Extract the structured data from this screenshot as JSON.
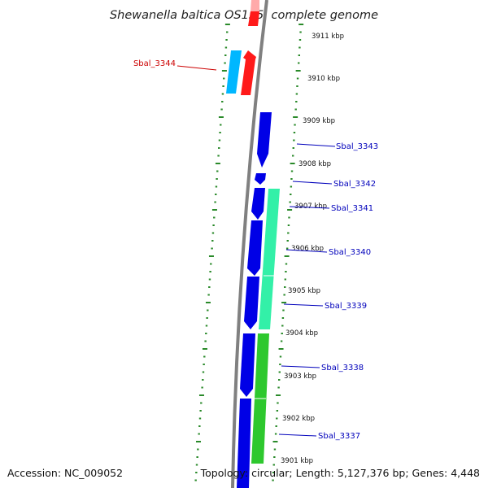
{
  "title": "Shewanella baltica OS155, complete genome",
  "accession_text": "Accession: NC_009052",
  "summary_text": "Topology: circular; Length: 5,127,376 bp; Genes: 4,448",
  "colors": {
    "backbone": "#808080",
    "ticks": "#2a8a2a",
    "forward_gene": "#ff1a1a",
    "forward_gene_light": "#00b7ff",
    "reverse_gene": "#0000e6",
    "feature_light": "#33f0a8",
    "feature_green": "#2ec82e",
    "label_forward": "#cc0000",
    "label_reverse": "#0000bb"
  },
  "kbp_labels": [
    "3911 kbp",
    "3910 kbp",
    "3909 kbp",
    "3908 kbp",
    "3907 kbp",
    "3906 kbp",
    "3905 kbp",
    "3904 kbp",
    "3903 kbp",
    "3902 kbp",
    "3901 kbp"
  ],
  "genes": [
    {
      "label": "Sbal_3344",
      "strand": "forward"
    },
    {
      "label": "Sbal_3343",
      "strand": "reverse"
    },
    {
      "label": "Sbal_3342",
      "strand": "reverse"
    },
    {
      "label": "Sbal_3341",
      "strand": "reverse"
    },
    {
      "label": "Sbal_3340",
      "strand": "reverse"
    },
    {
      "label": "Sbal_3339",
      "strand": "reverse"
    },
    {
      "label": "Sbal_3338",
      "strand": "reverse"
    },
    {
      "label": "Sbal_3337",
      "strand": "reverse"
    }
  ]
}
